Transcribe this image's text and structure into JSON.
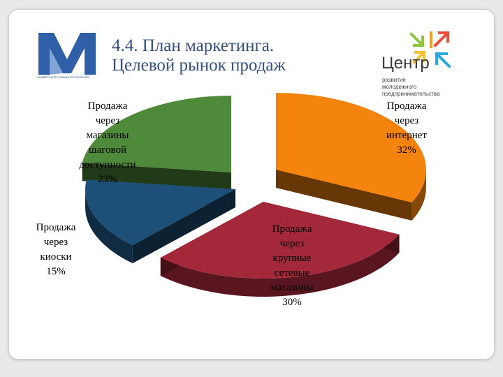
{
  "title": {
    "line1": "4.4. План маркетинга.",
    "line2": "Целевой рынок продаж"
  },
  "logo_university": {
    "caption": "УНИВЕРСИТЕТ МАШИНОСТРОЕНИЯ"
  },
  "logo_centre": {
    "word": "Центр",
    "sub_line1": "развития",
    "sub_line2": "молодежного",
    "sub_line3": "предпринимательства"
  },
  "chart_data": {
    "type": "pie",
    "title": "",
    "categories": [
      "Продажа через интернет",
      "Продажа через крупные сетевые магазины",
      "Продажа через киоски",
      "Продажа через магазины шаговой доступности"
    ],
    "values": [
      32,
      30,
      15,
      23
    ],
    "unit": "%",
    "colors": [
      "#f5840f",
      "#a3283a",
      "#1d5078",
      "#4f8a3a"
    ],
    "label_lines": [
      [
        "Продажа",
        "через",
        "интернет",
        "32%"
      ],
      [
        "Продажа",
        "через",
        "крупные",
        "сетевые",
        "магазины",
        "30%"
      ],
      [
        "Продажа",
        "через",
        "киоски",
        "15%"
      ],
      [
        "Продажа",
        "через",
        "магазины",
        "шаговой",
        "доступности",
        "23%"
      ]
    ],
    "style": "3d-exploded"
  }
}
